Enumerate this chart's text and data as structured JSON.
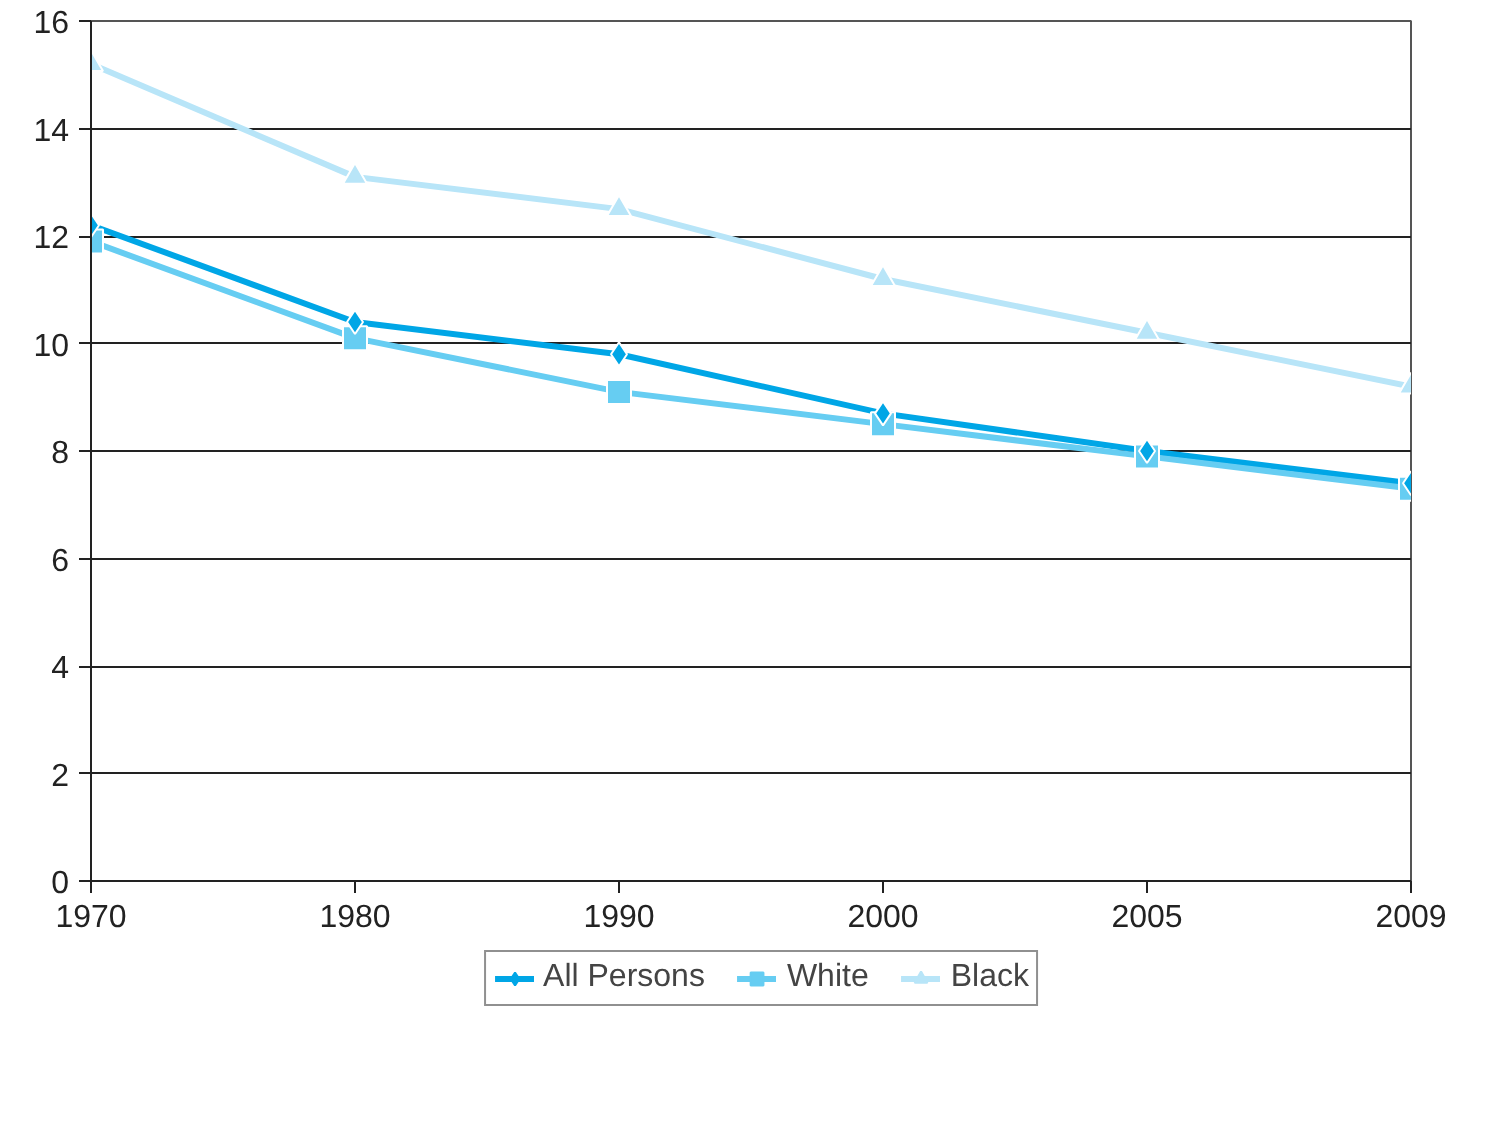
{
  "chart_data": {
    "type": "line",
    "categories": [
      "1970",
      "1980",
      "1990",
      "2000",
      "2005",
      "2009"
    ],
    "series": [
      {
        "name": "All Persons",
        "color": "#00a6e6",
        "marker": "diamond",
        "values": [
          12.2,
          10.4,
          9.8,
          8.7,
          8.0,
          7.4
        ]
      },
      {
        "name": "White",
        "color": "#66cdf2",
        "marker": "square",
        "values": [
          11.9,
          10.1,
          9.1,
          8.5,
          7.9,
          7.3
        ]
      },
      {
        "name": "Black",
        "color": "#b8e5f8",
        "marker": "triangle",
        "values": [
          15.2,
          13.1,
          12.5,
          11.2,
          10.2,
          9.2
        ]
      }
    ],
    "ylim": [
      0,
      16
    ],
    "yticks": [
      0,
      2,
      4,
      6,
      8,
      10,
      12,
      14,
      16
    ],
    "grid": "y",
    "legend": "bottom"
  }
}
